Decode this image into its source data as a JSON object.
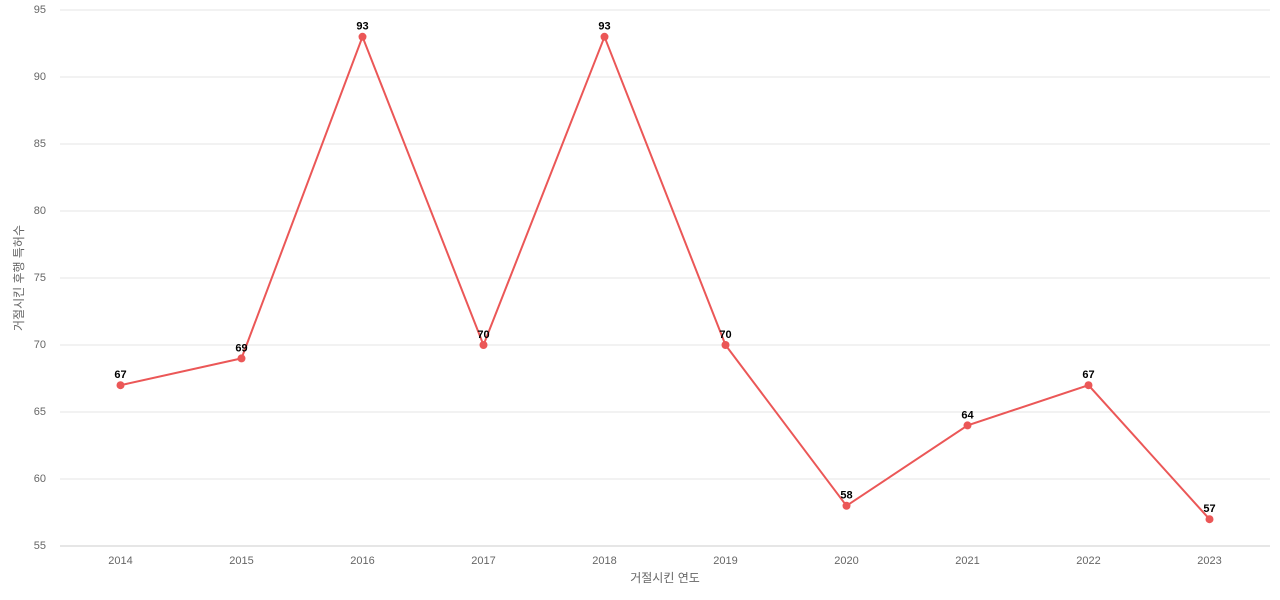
{
  "chart_data": {
    "type": "line",
    "x_label": "거절시킨 연도",
    "y_label": "거절시킨 후행 특허수",
    "categories": [
      "2014",
      "2015",
      "2016",
      "2017",
      "2018",
      "2019",
      "2020",
      "2021",
      "2022",
      "2023"
    ],
    "values": [
      67,
      69,
      93,
      70,
      93,
      70,
      58,
      64,
      67,
      57
    ],
    "color": "#eb5757",
    "ylim": [
      55,
      95
    ],
    "yticks": [
      55,
      60,
      65,
      70,
      75,
      80,
      85,
      90,
      95
    ],
    "grid": true
  }
}
